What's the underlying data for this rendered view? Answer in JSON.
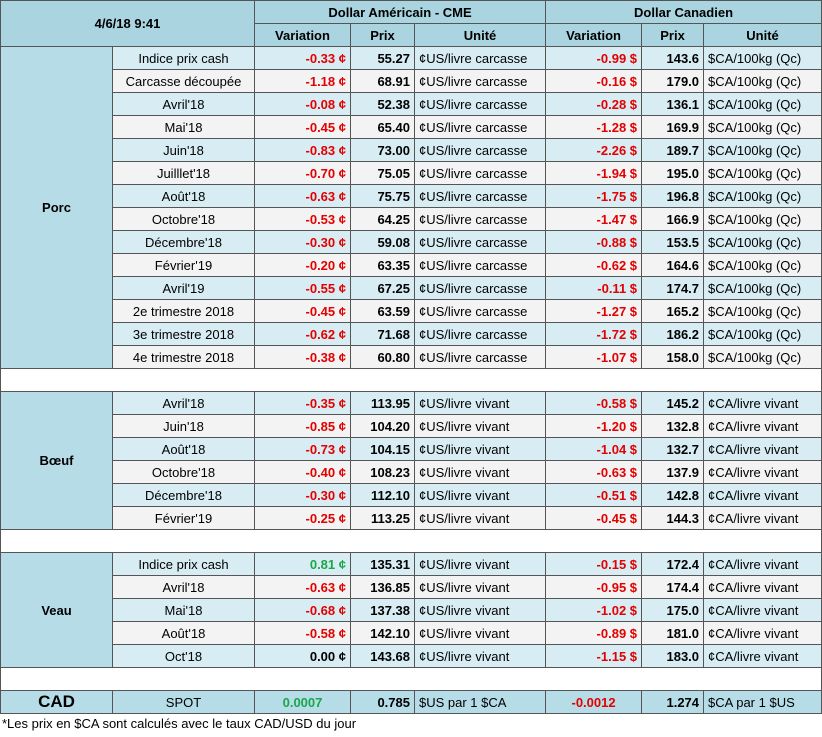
{
  "header": {
    "datetime": "4/6/18 9:41",
    "usd_title": "Dollar Américain - CME",
    "cad_title": "Dollar Canadien",
    "col_variation": "Variation",
    "col_prix": "Prix",
    "col_unite": "Unité"
  },
  "sections": [
    {
      "category": "Porc",
      "rows": [
        {
          "label": "Indice prix cash",
          "usd_var": "-0.33 ¢",
          "usd_prix": "55.27",
          "usd_unit": "¢US/livre carcasse",
          "cad_var": "-0.99 $",
          "cad_prix": "143.6",
          "cad_unit": "$CA/100kg (Qc)"
        },
        {
          "label": "Carcasse découpée",
          "usd_var": "-1.18 ¢",
          "usd_prix": "68.91",
          "usd_unit": "¢US/livre carcasse",
          "cad_var": "-0.16 $",
          "cad_prix": "179.0",
          "cad_unit": "$CA/100kg (Qc)"
        },
        {
          "label": "Avril'18",
          "usd_var": "-0.08 ¢",
          "usd_prix": "52.38",
          "usd_unit": "¢US/livre carcasse",
          "cad_var": "-0.28 $",
          "cad_prix": "136.1",
          "cad_unit": "$CA/100kg (Qc)"
        },
        {
          "label": "Mai'18",
          "usd_var": "-0.45 ¢",
          "usd_prix": "65.40",
          "usd_unit": "¢US/livre carcasse",
          "cad_var": "-1.28 $",
          "cad_prix": "169.9",
          "cad_unit": "$CA/100kg (Qc)"
        },
        {
          "label": "Juin'18",
          "usd_var": "-0.83 ¢",
          "usd_prix": "73.00",
          "usd_unit": "¢US/livre carcasse",
          "cad_var": "-2.26 $",
          "cad_prix": "189.7",
          "cad_unit": "$CA/100kg (Qc)"
        },
        {
          "label": "Juilllet'18",
          "usd_var": "-0.70 ¢",
          "usd_prix": "75.05",
          "usd_unit": "¢US/livre carcasse",
          "cad_var": "-1.94 $",
          "cad_prix": "195.0",
          "cad_unit": "$CA/100kg (Qc)"
        },
        {
          "label": "Août'18",
          "usd_var": "-0.63 ¢",
          "usd_prix": "75.75",
          "usd_unit": "¢US/livre carcasse",
          "cad_var": "-1.75 $",
          "cad_prix": "196.8",
          "cad_unit": "$CA/100kg (Qc)"
        },
        {
          "label": "Octobre'18",
          "usd_var": "-0.53 ¢",
          "usd_prix": "64.25",
          "usd_unit": "¢US/livre carcasse",
          "cad_var": "-1.47 $",
          "cad_prix": "166.9",
          "cad_unit": "$CA/100kg (Qc)"
        },
        {
          "label": "Décembre'18",
          "usd_var": "-0.30 ¢",
          "usd_prix": "59.08",
          "usd_unit": "¢US/livre carcasse",
          "cad_var": "-0.88 $",
          "cad_prix": "153.5",
          "cad_unit": "$CA/100kg (Qc)"
        },
        {
          "label": "Février'19",
          "usd_var": "-0.20 ¢",
          "usd_prix": "63.35",
          "usd_unit": "¢US/livre carcasse",
          "cad_var": "-0.62 $",
          "cad_prix": "164.6",
          "cad_unit": "$CA/100kg (Qc)"
        },
        {
          "label": "Avril'19",
          "usd_var": "-0.55 ¢",
          "usd_prix": "67.25",
          "usd_unit": "¢US/livre carcasse",
          "cad_var": "-0.11 $",
          "cad_prix": "174.7",
          "cad_unit": "$CA/100kg (Qc)"
        },
        {
          "label": "2e trimestre 2018",
          "usd_var": "-0.45 ¢",
          "usd_prix": "63.59",
          "usd_unit": "¢US/livre carcasse",
          "cad_var": "-1.27 $",
          "cad_prix": "165.2",
          "cad_unit": "$CA/100kg (Qc)"
        },
        {
          "label": "3e trimestre 2018",
          "usd_var": "-0.62 ¢",
          "usd_prix": "71.68",
          "usd_unit": "¢US/livre carcasse",
          "cad_var": "-1.72 $",
          "cad_prix": "186.2",
          "cad_unit": "$CA/100kg (Qc)"
        },
        {
          "label": "4e trimestre 2018",
          "usd_var": "-0.38 ¢",
          "usd_prix": "60.80",
          "usd_unit": "¢US/livre carcasse",
          "cad_var": "-1.07 $",
          "cad_prix": "158.0",
          "cad_unit": "$CA/100kg (Qc)"
        }
      ]
    },
    {
      "category": "Bœuf",
      "rows": [
        {
          "label": "Avril'18",
          "usd_var": "-0.35 ¢",
          "usd_prix": "113.95",
          "usd_unit": "¢US/livre vivant",
          "cad_var": "-0.58 $",
          "cad_prix": "145.2",
          "cad_unit": "¢CA/livre vivant"
        },
        {
          "label": "Juin'18",
          "usd_var": "-0.85 ¢",
          "usd_prix": "104.20",
          "usd_unit": "¢US/livre vivant",
          "cad_var": "-1.20 $",
          "cad_prix": "132.8",
          "cad_unit": "¢CA/livre vivant"
        },
        {
          "label": "Août'18",
          "usd_var": "-0.73 ¢",
          "usd_prix": "104.15",
          "usd_unit": "¢US/livre vivant",
          "cad_var": "-1.04 $",
          "cad_prix": "132.7",
          "cad_unit": "¢CA/livre vivant"
        },
        {
          "label": "Octobre'18",
          "usd_var": "-0.40 ¢",
          "usd_prix": "108.23",
          "usd_unit": "¢US/livre vivant",
          "cad_var": "-0.63 $",
          "cad_prix": "137.9",
          "cad_unit": "¢CA/livre vivant"
        },
        {
          "label": "Décembre'18",
          "usd_var": "-0.30 ¢",
          "usd_prix": "112.10",
          "usd_unit": "¢US/livre vivant",
          "cad_var": "-0.51 $",
          "cad_prix": "142.8",
          "cad_unit": "¢CA/livre vivant"
        },
        {
          "label": "Février'19",
          "usd_var": "-0.25 ¢",
          "usd_prix": "113.25",
          "usd_unit": "¢US/livre vivant",
          "cad_var": "-0.45 $",
          "cad_prix": "144.3",
          "cad_unit": "¢CA/livre vivant"
        }
      ]
    },
    {
      "category": "Veau",
      "rows": [
        {
          "label": "Indice prix cash",
          "usd_var": "0.81 ¢",
          "usd_prix": "135.31",
          "usd_unit": "¢US/livre vivant",
          "cad_var": "-0.15 $",
          "cad_prix": "172.4",
          "cad_unit": "¢CA/livre vivant"
        },
        {
          "label": "Avril'18",
          "usd_var": "-0.63 ¢",
          "usd_prix": "136.85",
          "usd_unit": "¢US/livre vivant",
          "cad_var": "-0.95 $",
          "cad_prix": "174.4",
          "cad_unit": "¢CA/livre vivant"
        },
        {
          "label": "Mai'18",
          "usd_var": "-0.68 ¢",
          "usd_prix": "137.38",
          "usd_unit": "¢US/livre vivant",
          "cad_var": "-1.02 $",
          "cad_prix": "175.0",
          "cad_unit": "¢CA/livre vivant"
        },
        {
          "label": "Août'18",
          "usd_var": "-0.58 ¢",
          "usd_prix": "142.10",
          "usd_unit": "¢US/livre vivant",
          "cad_var": "-0.89 $",
          "cad_prix": "181.0",
          "cad_unit": "¢CA/livre vivant"
        },
        {
          "label": "Oct'18",
          "usd_var": "0.00 ¢",
          "usd_prix": "143.68",
          "usd_unit": "¢US/livre vivant",
          "cad_var": "-1.15 $",
          "cad_prix": "183.0",
          "cad_unit": "¢CA/livre vivant"
        }
      ]
    }
  ],
  "cad_row": {
    "category": "CAD",
    "label": "SPOT",
    "usd_var": "0.0007",
    "usd_prix": "0.785",
    "usd_unit": "$US par 1 $CA",
    "cad_var": "-0.0012",
    "cad_prix": "1.274",
    "cad_unit": "$CA par 1 $US"
  },
  "colors": {
    "negative": "#e30000",
    "positive": "#1aa64a",
    "header_bg": "#a9d4e0"
  },
  "footnote": "*Les  prix en $CA sont calculés avec le taux CAD/USD du jour"
}
